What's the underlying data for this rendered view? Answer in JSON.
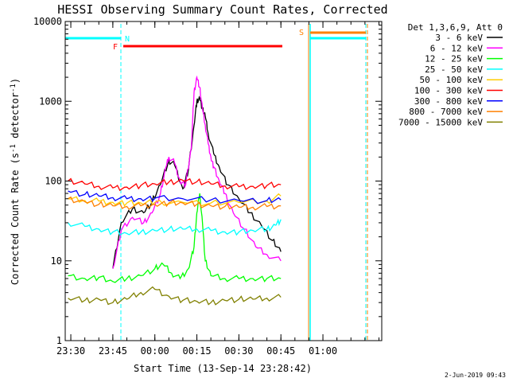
{
  "chart_data": {
    "type": "line",
    "title": "HESSI Observing Summary Count Rates, Corrected",
    "xlabel": "Start Time (13-Sep-14 23:28:42)",
    "ylabel_main": "Corrected Count Rate (s",
    "ylabel_sup1": "-1",
    "ylabel_mid": " detector",
    "ylabel_sup2": "-1",
    "ylabel_end": ")",
    "y_scale": "log",
    "ylim": [
      1,
      10000
    ],
    "xlim": [
      "23:28",
      "01:21"
    ],
    "y_ticks": [
      "1",
      "10",
      "100",
      "1000",
      "10000"
    ],
    "x_ticks": [
      "23:30",
      "23:45",
      "00:00",
      "00:15",
      "00:30",
      "00:45",
      "01:00"
    ],
    "legend_header": "Det 1,3,6,9, Att 0",
    "footer_date": "2-Jun-2019 09:43",
    "flags": {
      "night_label": "N",
      "flare_label": "F",
      "saa_label": "S",
      "night_color": "#00ffff",
      "flare_color": "#ff0000",
      "saa_color": "#ff8000"
    },
    "series": [
      {
        "name": "3 - 6 keV",
        "color": "#000000",
        "x": [
          "23:45",
          "23:48",
          "23:52",
          "23:56",
          "23:59",
          "00:02",
          "00:05",
          "00:07",
          "00:10",
          "00:12",
          "00:14",
          "00:15",
          "00:16",
          "00:17",
          "00:18",
          "00:19",
          "00:21",
          "00:23",
          "00:26",
          "00:30",
          "00:34",
          "00:38",
          "00:42",
          "00:45"
        ],
        "y": [
          8,
          30,
          45,
          40,
          55,
          90,
          180,
          160,
          80,
          140,
          500,
          1000,
          1100,
          800,
          650,
          400,
          220,
          150,
          90,
          60,
          40,
          28,
          18,
          13
        ]
      },
      {
        "name": "6 - 12 keV",
        "color": "#ff00ff",
        "x": [
          "23:45",
          "23:48",
          "23:52",
          "23:56",
          "23:59",
          "00:02",
          "00:04",
          "00:05",
          "00:07",
          "00:09",
          "00:11",
          "00:13",
          "00:14",
          "00:15",
          "00:16",
          "00:17",
          "00:18",
          "00:19",
          "00:20",
          "00:21",
          "00:23",
          "00:25",
          "00:28",
          "00:32",
          "00:36",
          "00:40",
          "00:45"
        ],
        "y": [
          8,
          24,
          35,
          30,
          40,
          70,
          150,
          200,
          170,
          100,
          90,
          260,
          1300,
          2000,
          1500,
          800,
          500,
          300,
          200,
          150,
          100,
          70,
          40,
          25,
          15,
          12,
          10
        ]
      },
      {
        "name": "12 - 25 keV",
        "color": "#00ff00",
        "x": [
          "23:29",
          "23:35",
          "23:40",
          "23:45",
          "23:50",
          "23:55",
          "00:00",
          "00:03",
          "00:06",
          "00:09",
          "00:12",
          "00:14",
          "00:15",
          "00:16",
          "00:17",
          "00:18",
          "00:20",
          "00:25",
          "00:30",
          "00:35",
          "00:40",
          "00:45"
        ],
        "y": [
          6.5,
          6,
          6.2,
          5.5,
          6,
          6.5,
          8,
          9,
          7,
          6,
          8,
          15,
          40,
          70,
          30,
          10,
          6.5,
          6,
          6,
          6,
          6,
          6
        ]
      },
      {
        "name": "25 - 50 keV",
        "color": "#00ffff",
        "x": [
          "23:29",
          "23:35",
          "23:40",
          "23:45",
          "23:50",
          "23:55",
          "00:00",
          "00:05",
          "00:10",
          "00:15",
          "00:20",
          "00:25",
          "00:30",
          "00:35",
          "00:40",
          "00:43",
          "00:45"
        ],
        "y": [
          30,
          27,
          25,
          23,
          22,
          23,
          24,
          25,
          25,
          25,
          24,
          23,
          23,
          24,
          25,
          28,
          33
        ]
      },
      {
        "name": "50 - 100 keV",
        "color": "#ffcc00",
        "x": [
          "23:29",
          "23:35",
          "23:40",
          "23:45",
          "23:50",
          "23:55",
          "00:00",
          "00:10",
          "00:20",
          "00:30",
          "00:40",
          "00:45"
        ],
        "y": [
          60,
          57,
          56,
          54,
          53,
          53,
          54,
          54,
          53,
          54,
          56,
          65
        ]
      },
      {
        "name": "100 - 300 keV",
        "color": "#ff0000",
        "x": [
          "23:29",
          "23:35",
          "23:40",
          "23:45",
          "23:50",
          "23:55",
          "00:00",
          "00:05",
          "00:10",
          "00:15",
          "00:20",
          "00:25",
          "00:30",
          "00:35",
          "00:40",
          "00:45"
        ],
        "y": [
          100,
          92,
          86,
          82,
          84,
          88,
          92,
          97,
          102,
          98,
          92,
          87,
          85,
          86,
          88,
          90
        ]
      },
      {
        "name": "300 - 800 keV",
        "color": "#0000ff",
        "x": [
          "23:29",
          "23:35",
          "23:40",
          "23:45",
          "23:50",
          "23:55",
          "00:00",
          "00:10",
          "00:20",
          "00:30",
          "00:40",
          "00:45"
        ],
        "y": [
          75,
          68,
          65,
          62,
          60,
          60,
          61,
          60,
          58,
          57,
          57,
          58
        ]
      },
      {
        "name": "800 - 7000 keV",
        "color": "#ff8000",
        "x": [
          "23:29",
          "23:35",
          "23:40",
          "23:45",
          "23:50",
          "23:55",
          "00:00",
          "00:05",
          "00:10",
          "00:15",
          "00:20",
          "00:25",
          "00:30",
          "00:35",
          "00:40",
          "00:45"
        ],
        "y": [
          60,
          55,
          51,
          49,
          48,
          49,
          51,
          53,
          53,
          51,
          49,
          48,
          47,
          47,
          48,
          49
        ]
      },
      {
        "name": "7000 - 15000 keV",
        "color": "#808000",
        "x": [
          "23:29",
          "23:35",
          "23:40",
          "23:45",
          "23:50",
          "23:55",
          "00:00",
          "00:05",
          "00:10",
          "00:15",
          "00:20",
          "00:25",
          "00:30",
          "00:35",
          "00:40",
          "00:45"
        ],
        "y": [
          3.4,
          3.2,
          3.3,
          3.0,
          3.3,
          4.0,
          4.4,
          3.6,
          3.2,
          3.1,
          3.0,
          3.2,
          3.3,
          3.3,
          3.4,
          3.5
        ]
      }
    ]
  }
}
